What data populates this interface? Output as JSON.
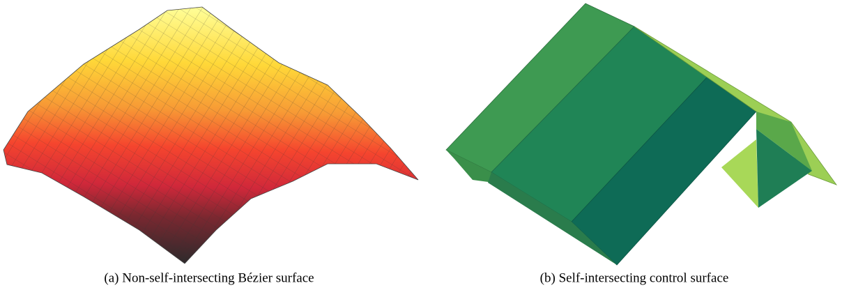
{
  "figure": {
    "subfigures": [
      {
        "caption": "(a) Non-self-intersecting Bézier surface"
      },
      {
        "caption": "(b) Self-intersecting control surface"
      }
    ]
  }
}
